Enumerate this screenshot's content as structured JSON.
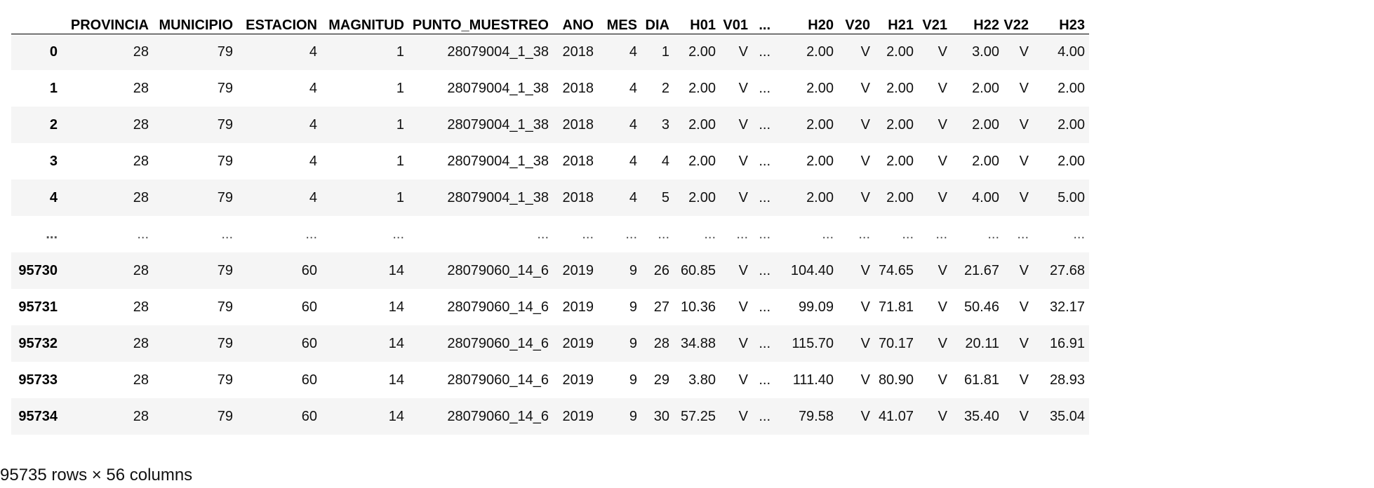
{
  "table": {
    "index_header": "",
    "columns": [
      "PROVINCIA",
      "MUNICIPIO",
      "ESTACION",
      "MAGNITUD",
      "PUNTO_MUESTREO",
      "ANO",
      "MES",
      "DIA",
      "H01",
      "V01",
      "...",
      "H20",
      "V20",
      "H21",
      "V21",
      "H22",
      "V22",
      "H23"
    ],
    "rows": [
      {
        "index": "0",
        "cells": [
          "28",
          "79",
          "4",
          "1",
          "28079004_1_38",
          "2018",
          "4",
          "1",
          "2.00",
          "V",
          "...",
          "2.00",
          "V",
          "2.00",
          "V",
          "3.00",
          "V",
          "4.00"
        ]
      },
      {
        "index": "1",
        "cells": [
          "28",
          "79",
          "4",
          "1",
          "28079004_1_38",
          "2018",
          "4",
          "2",
          "2.00",
          "V",
          "...",
          "2.00",
          "V",
          "2.00",
          "V",
          "2.00",
          "V",
          "2.00"
        ]
      },
      {
        "index": "2",
        "cells": [
          "28",
          "79",
          "4",
          "1",
          "28079004_1_38",
          "2018",
          "4",
          "3",
          "2.00",
          "V",
          "...",
          "2.00",
          "V",
          "2.00",
          "V",
          "2.00",
          "V",
          "2.00"
        ]
      },
      {
        "index": "3",
        "cells": [
          "28",
          "79",
          "4",
          "1",
          "28079004_1_38",
          "2018",
          "4",
          "4",
          "2.00",
          "V",
          "...",
          "2.00",
          "V",
          "2.00",
          "V",
          "2.00",
          "V",
          "2.00"
        ]
      },
      {
        "index": "4",
        "cells": [
          "28",
          "79",
          "4",
          "1",
          "28079004_1_38",
          "2018",
          "4",
          "5",
          "2.00",
          "V",
          "...",
          "2.00",
          "V",
          "2.00",
          "V",
          "4.00",
          "V",
          "5.00"
        ]
      },
      {
        "index": "...",
        "cells": [
          "...",
          "...",
          "...",
          "...",
          "...",
          "...",
          "...",
          "...",
          "...",
          "...",
          "...",
          "...",
          "...",
          "...",
          "...",
          "...",
          "...",
          "..."
        ]
      },
      {
        "index": "95730",
        "cells": [
          "28",
          "79",
          "60",
          "14",
          "28079060_14_6",
          "2019",
          "9",
          "26",
          "60.85",
          "V",
          "...",
          "104.40",
          "V",
          "74.65",
          "V",
          "21.67",
          "V",
          "27.68"
        ]
      },
      {
        "index": "95731",
        "cells": [
          "28",
          "79",
          "60",
          "14",
          "28079060_14_6",
          "2019",
          "9",
          "27",
          "10.36",
          "V",
          "...",
          "99.09",
          "V",
          "71.81",
          "V",
          "50.46",
          "V",
          "32.17"
        ]
      },
      {
        "index": "95732",
        "cells": [
          "28",
          "79",
          "60",
          "14",
          "28079060_14_6",
          "2019",
          "9",
          "28",
          "34.88",
          "V",
          "...",
          "115.70",
          "V",
          "70.17",
          "V",
          "20.11",
          "V",
          "16.91"
        ]
      },
      {
        "index": "95733",
        "cells": [
          "28",
          "79",
          "60",
          "14",
          "28079060_14_6",
          "2019",
          "9",
          "29",
          "3.80",
          "V",
          "...",
          "111.40",
          "V",
          "80.90",
          "V",
          "61.81",
          "V",
          "28.93"
        ]
      },
      {
        "index": "95734",
        "cells": [
          "28",
          "79",
          "60",
          "14",
          "28079060_14_6",
          "2019",
          "9",
          "30",
          "57.25",
          "V",
          "...",
          "79.58",
          "V",
          "41.07",
          "V",
          "35.40",
          "V",
          "35.04"
        ]
      }
    ]
  },
  "shape_info": "95735 rows × 56 columns"
}
